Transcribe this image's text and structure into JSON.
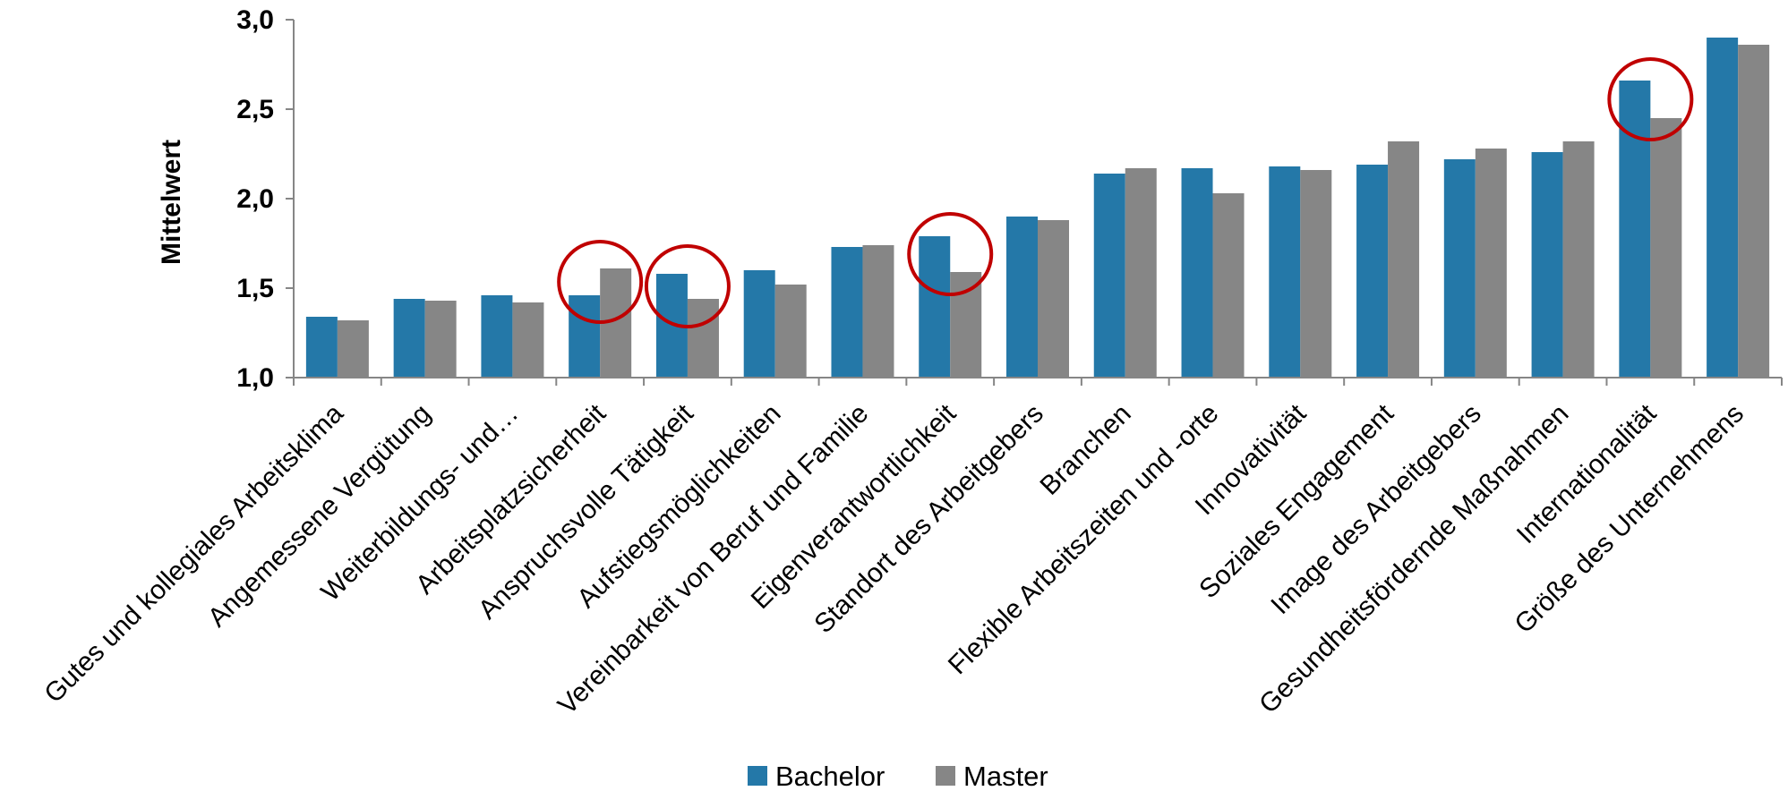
{
  "chart_data": {
    "type": "bar",
    "ylabel": "Mittelwert",
    "ylim": [
      1.0,
      3.0
    ],
    "yticks": [
      "1,0",
      "1,5",
      "2,0",
      "2,5",
      "3,0"
    ],
    "categories": [
      "Gutes und kollegiales Arbeitsklima",
      "Angemessene Vergütung",
      "Weiterbildungs- und…",
      "Arbeitsplatzsicherheit",
      "Anspruchsvolle Tätigkeit",
      "Aufstiegsmöglichkeiten",
      "Vereinbarkeit von Beruf und Familie",
      "Eigenverantwortlichkeit",
      "Standort des Arbeitgebers",
      "Branchen",
      "Flexible Arbeitszeiten und -orte",
      "Innovativität",
      "Soziales Engagement",
      "Image des Arbeitgebers",
      "Gesundheitsfördernde Maßnahmen",
      "Internationalität",
      "Größe des Unternehmens"
    ],
    "series": [
      {
        "name": "Bachelor",
        "color": "#2478a8",
        "values": [
          1.34,
          1.44,
          1.46,
          1.46,
          1.58,
          1.6,
          1.73,
          1.79,
          1.9,
          2.14,
          2.17,
          2.18,
          2.19,
          2.22,
          2.26,
          2.66,
          2.9
        ]
      },
      {
        "name": "Master",
        "color": "#868686",
        "values": [
          1.32,
          1.43,
          1.42,
          1.61,
          1.44,
          1.52,
          1.74,
          1.59,
          1.88,
          2.17,
          2.03,
          2.16,
          2.32,
          2.28,
          2.32,
          2.45,
          2.86
        ]
      }
    ],
    "highlighted_categories": [
      3,
      4,
      7,
      15
    ],
    "highlight_color": "#c00000",
    "grid": false,
    "legend_position": "bottom"
  }
}
